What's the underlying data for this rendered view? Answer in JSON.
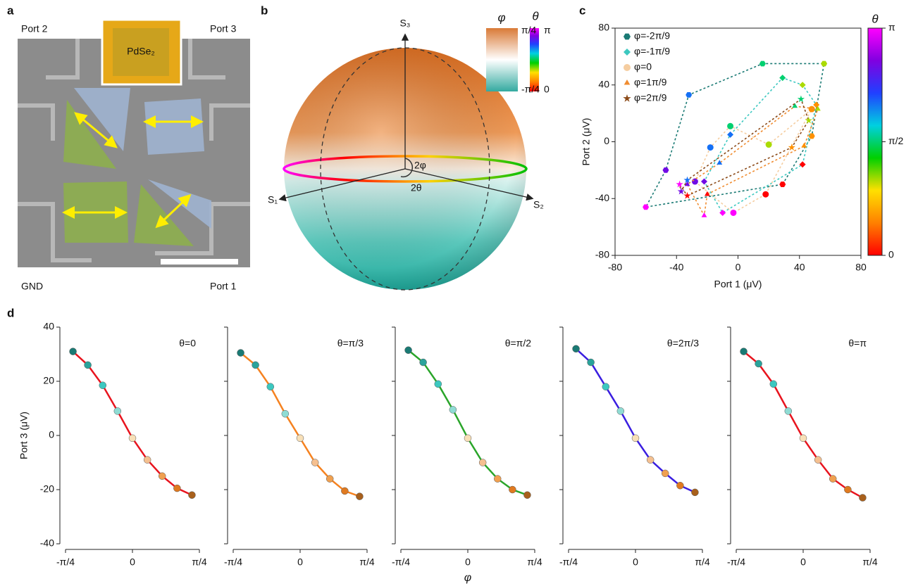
{
  "panel_labels": [
    "a",
    "b",
    "c",
    "d"
  ],
  "micrograph": {
    "labels": [
      "Port 2",
      "Port 3",
      "GND",
      "Port 1"
    ],
    "inset": "PdSe₂"
  },
  "sphere": {
    "axes": [
      "S₃",
      "S₁",
      "S₂"
    ],
    "angles": [
      "2φ",
      "2θ"
    ],
    "phi_bar": {
      "title": "φ",
      "ticks": [
        "π/4",
        "-π/4"
      ]
    },
    "theta_bar": {
      "title": "θ",
      "ticks": [
        "π",
        "0"
      ]
    }
  },
  "chart_data": [
    {
      "type": "scatter",
      "xlabel": "Port 1 (μV)",
      "ylabel": "Port 2 (μV)",
      "xlim": [
        -80,
        80
      ],
      "ylim": [
        -80,
        80
      ],
      "xticks": [
        -80,
        -40,
        0,
        40,
        80
      ],
      "yticks": [
        -80,
        -40,
        0,
        40,
        80
      ],
      "colorbar": {
        "title": "θ",
        "lim": [
          0,
          3.1416
        ],
        "ticks": [
          {
            "value": 0,
            "label": "0"
          },
          {
            "value": 1.5708,
            "label": "π/2"
          },
          {
            "value": 3.1416,
            "label": "π"
          }
        ],
        "colors": [
          "#ff0000",
          "#ff8000",
          "#ffe000",
          "#00d000",
          "#00d0e0",
          "#2040ff",
          "#8000e0",
          "#ff00ff"
        ]
      },
      "series": [
        {
          "name": "φ=-2π/9",
          "color": "#1a7a74",
          "marker": "hexagon",
          "x": [
            29,
            48,
            56,
            16,
            -32,
            -47,
            -60
          ],
          "values": [
            -30,
            4,
            55,
            55,
            33,
            -20,
            -46
          ],
          "theta": [
            0,
            0.5236,
            1.0472,
            1.5708,
            2.0944,
            2.618,
            3.1416
          ]
        },
        {
          "name": "φ=-1π/9",
          "color": "#3cc8c0",
          "marker": "diamond",
          "x": [
            42,
            51,
            42,
            29,
            -5,
            -22,
            -10
          ],
          "values": [
            -16,
            26,
            40,
            45,
            5,
            -28,
            -50
          ],
          "theta": [
            0,
            0.5236,
            1.0472,
            1.5708,
            2.0944,
            2.618,
            3.1416
          ]
        },
        {
          "name": "φ=0",
          "color": "#f5cda0",
          "marker": "circle",
          "x": [
            18,
            48,
            20,
            -5,
            -18,
            -28,
            -3
          ],
          "values": [
            -37,
            23,
            -2,
            11,
            -4,
            -28,
            -50
          ],
          "theta": [
            0,
            0.5236,
            1.0472,
            1.5708,
            2.0944,
            2.618,
            3.1416
          ]
        },
        {
          "name": "φ=1π/9",
          "color": "#f08c30",
          "marker": "triangle",
          "x": [
            -20,
            43,
            52,
            37,
            -12,
            -33,
            -22
          ],
          "values": [
            -37,
            -3,
            23,
            25,
            -15,
            -30,
            -52
          ],
          "theta": [
            0,
            0.5236,
            1.0472,
            1.5708,
            2.0944,
            2.618,
            3.1416
          ]
        },
        {
          "name": "φ=2π/9",
          "color": "#8b4a18",
          "marker": "star",
          "x": [
            -33,
            35,
            46,
            41,
            -33,
            -37,
            -38
          ],
          "values": [
            -38,
            -4,
            15,
            30,
            -27,
            -35,
            -30
          ],
          "theta": [
            0,
            0.5236,
            1.0472,
            1.5708,
            2.0944,
            2.618,
            3.1416
          ]
        }
      ]
    },
    {
      "type": "line",
      "annotation": "θ=0",
      "color": "#e8141e",
      "ylabel": "Port 3 (μV)",
      "show_ytick_labels": true,
      "x": [
        -0.698,
        -0.524,
        -0.349,
        -0.175,
        0,
        0.175,
        0.349,
        0.524,
        0.698
      ],
      "values": [
        31,
        26,
        18.5,
        9,
        -1,
        -9,
        -15,
        -19.5,
        -22
      ],
      "marker_colors": [
        "#1a7a74",
        "#2aa39b",
        "#3cc8c0",
        "#8fdcd4",
        "#f8e0b8",
        "#f5c090",
        "#f0a050",
        "#e07a20",
        "#a8601c"
      ],
      "xlim": [
        -0.7854,
        0.7854
      ],
      "ylim": [
        -40,
        40
      ],
      "xticks": [
        {
          "value": -0.7854,
          "label": "-π/4"
        },
        0,
        {
          "value": 0.7854,
          "label": "π/4"
        }
      ],
      "yticks": [
        -40,
        -20,
        0,
        20,
        40
      ]
    },
    {
      "type": "line",
      "annotation": "θ=π/3",
      "color": "#f58220",
      "show_ytick_labels": false,
      "x": [
        -0.698,
        -0.524,
        -0.349,
        -0.175,
        0,
        0.175,
        0.349,
        0.524,
        0.698
      ],
      "values": [
        30.5,
        26,
        18,
        8,
        -1,
        -10,
        -16,
        -20.5,
        -22.5
      ],
      "marker_colors": [
        "#1a7a74",
        "#2aa39b",
        "#3cc8c0",
        "#8fdcd4",
        "#f8e0b8",
        "#f5c090",
        "#f0a050",
        "#e07a20",
        "#a8601c"
      ],
      "xlim": [
        -0.7854,
        0.7854
      ],
      "ylim": [
        -40,
        40
      ],
      "xticks": [
        {
          "value": -0.7854,
          "label": "-π/4"
        },
        0,
        {
          "value": 0.7854,
          "label": "π/4"
        }
      ],
      "yticks": [
        -40,
        -20,
        0,
        20,
        40
      ]
    },
    {
      "type": "line",
      "annotation": "θ=π/2",
      "color": "#2aa52a",
      "show_ytick_labels": false,
      "xlabel": "φ",
      "x": [
        -0.698,
        -0.524,
        -0.349,
        -0.175,
        0,
        0.175,
        0.349,
        0.524,
        0.698
      ],
      "values": [
        31.5,
        27,
        19,
        9.5,
        -1,
        -10,
        -16,
        -20,
        -22
      ],
      "marker_colors": [
        "#1a7a74",
        "#2aa39b",
        "#3cc8c0",
        "#8fdcd4",
        "#f8e0b8",
        "#f5c090",
        "#f0a050",
        "#e07a20",
        "#a8601c"
      ],
      "xlim": [
        -0.7854,
        0.7854
      ],
      "ylim": [
        -40,
        40
      ],
      "xticks": [
        {
          "value": -0.7854,
          "label": "-π/4"
        },
        0,
        {
          "value": 0.7854,
          "label": "π/4"
        }
      ],
      "yticks": [
        -40,
        -20,
        0,
        20,
        40
      ]
    },
    {
      "type": "line",
      "annotation": "θ=2π/3",
      "color": "#3a1ee0",
      "show_ytick_labels": false,
      "x": [
        -0.698,
        -0.524,
        -0.349,
        -0.175,
        0,
        0.175,
        0.349,
        0.524,
        0.698
      ],
      "values": [
        32,
        27,
        18,
        9,
        -1,
        -9,
        -14,
        -18.5,
        -21
      ],
      "marker_colors": [
        "#1a7a74",
        "#2aa39b",
        "#3cc8c0",
        "#8fdcd4",
        "#f8e0b8",
        "#f5c090",
        "#f0a050",
        "#e07a20",
        "#a8601c"
      ],
      "xlim": [
        -0.7854,
        0.7854
      ],
      "ylim": [
        -40,
        40
      ],
      "xticks": [
        {
          "value": -0.7854,
          "label": "-π/4"
        },
        0,
        {
          "value": 0.7854,
          "label": "π/4"
        }
      ],
      "yticks": [
        -40,
        -20,
        0,
        20,
        40
      ]
    },
    {
      "type": "line",
      "annotation": "θ=π",
      "color": "#e8141e",
      "show_ytick_labels": false,
      "x": [
        -0.698,
        -0.524,
        -0.349,
        -0.175,
        0,
        0.175,
        0.349,
        0.524,
        0.698
      ],
      "values": [
        31,
        26.5,
        19,
        9,
        -1,
        -9,
        -16,
        -20,
        -23
      ],
      "marker_colors": [
        "#1a7a74",
        "#2aa39b",
        "#3cc8c0",
        "#8fdcd4",
        "#f8e0b8",
        "#f5c090",
        "#f0a050",
        "#e07a20",
        "#a8601c"
      ],
      "xlim": [
        -0.7854,
        0.7854
      ],
      "ylim": [
        -40,
        40
      ],
      "xticks": [
        {
          "value": -0.7854,
          "label": "-π/4"
        },
        0,
        {
          "value": 0.7854,
          "label": "π/4"
        }
      ],
      "yticks": [
        -40,
        -20,
        0,
        20,
        40
      ]
    }
  ]
}
